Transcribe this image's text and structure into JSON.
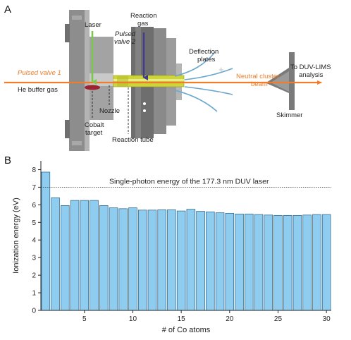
{
  "colors": {
    "laser": "#7ec850",
    "reaction_gas": "#3e3d92",
    "pulsed_valve_1": "#f07d28",
    "beam": "#f07d28",
    "reaction_tube": "#cfd437",
    "cobalt_target": "#9e2330",
    "deflection_plates": "#6aa7cf",
    "chamber": "#8d8d8d",
    "bar_fill": "#8ecdef",
    "bar_stroke": "#2a5f86"
  },
  "panel_a": {
    "label": "A",
    "labels": {
      "laser": "Laser",
      "reaction_gas_line1": "Reaction",
      "reaction_gas_line2": "gas",
      "pulsed_valve_2_line1": "Pulsed",
      "pulsed_valve_2_line2": "valve 2",
      "deflection_line1": "Deflection",
      "deflection_line2": "plates",
      "to_duv_line1": "To DUV-LIMS",
      "to_duv_line2": "analysis",
      "pulsed_valve_1": "Pulsed valve 1",
      "he_buffer": "He buffer gas",
      "beam_line1": "Neutral cluster",
      "beam_line2": "beam",
      "nozzle": "Nozzle",
      "cobalt_line1": "Cobalt",
      "cobalt_line2": "target",
      "reaction_tube": "Reaction tube",
      "skimmer": "Skimmer",
      "plus": "+",
      "minus": "−"
    }
  },
  "panel_b": {
    "label": "B",
    "chart_data": {
      "type": "bar",
      "xlabel": "# of Co atoms",
      "ylabel": "Ionization energy (eV)",
      "x": [
        1,
        2,
        3,
        4,
        5,
        6,
        7,
        8,
        9,
        10,
        11,
        12,
        13,
        14,
        15,
        16,
        17,
        18,
        19,
        20,
        21,
        22,
        23,
        24,
        25,
        26,
        27,
        28,
        29,
        30
      ],
      "values": [
        7.86,
        6.4,
        5.96,
        6.25,
        6.25,
        6.25,
        5.96,
        5.83,
        5.78,
        5.83,
        5.7,
        5.7,
        5.72,
        5.72,
        5.65,
        5.75,
        5.63,
        5.6,
        5.55,
        5.52,
        5.48,
        5.48,
        5.45,
        5.42,
        5.4,
        5.4,
        5.4,
        5.42,
        5.45,
        5.45
      ],
      "xlim": [
        0.5,
        30.5
      ],
      "ylim": [
        0,
        8.5
      ],
      "xticks": [
        5,
        10,
        15,
        20,
        25,
        30
      ],
      "yticks": [
        0,
        1,
        2,
        3,
        4,
        5,
        6,
        7,
        8
      ],
      "reference_line": {
        "value": 7.0,
        "label": "Single-photon energy of the 177.3 nm DUV laser"
      }
    }
  }
}
